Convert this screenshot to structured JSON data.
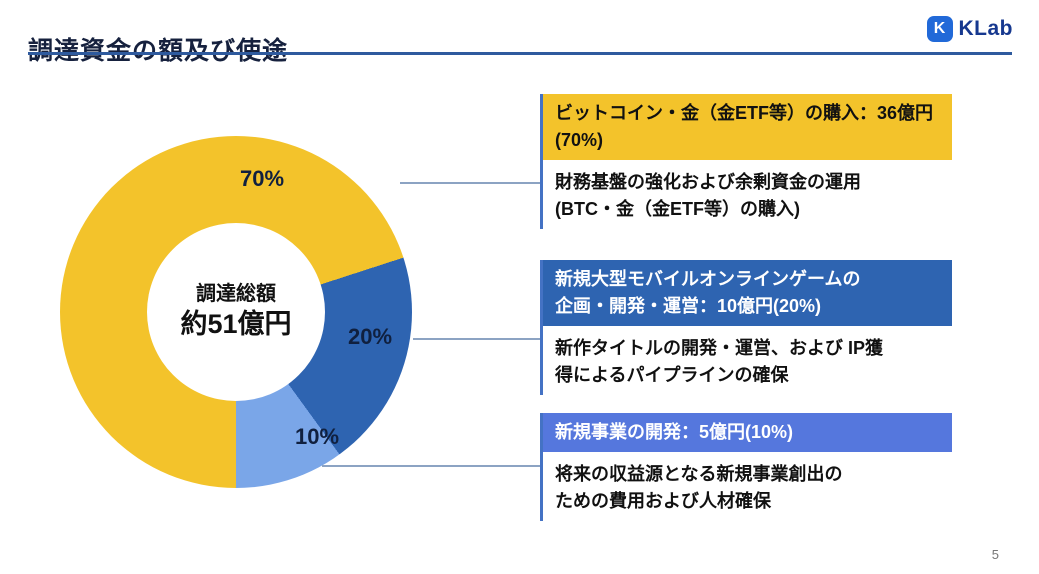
{
  "header": {
    "title": "調達資金の額及び使途",
    "logo": {
      "icon": "klab-mark-icon",
      "text": "KLab"
    }
  },
  "colors": {
    "title_text": "#16213E",
    "accent_line": "#2E5A9E",
    "connector": "#8CA3C3",
    "callout_rail": "#4472C4",
    "logo_blue": "#2169D8",
    "logo_text_blue": "#16388F"
  },
  "chart_data": {
    "type": "donut",
    "start_angle_deg": 180,
    "direction": "clockwise",
    "center_label": {
      "line1": "調達総額",
      "line2": "約51億円"
    },
    "segments": [
      {
        "name": "ビットコイン・金（金ETF等）の購入",
        "percent": 70,
        "amount": "36億円",
        "label": "70%",
        "color": "#F3C32B"
      },
      {
        "name": "新規大型モバイルオンラインゲームの企画・開発・運営",
        "percent": 20,
        "amount": "10億円",
        "label": "20%",
        "color": "#2E64B1"
      },
      {
        "name": "新規事業の開発",
        "percent": 10,
        "amount": "5億円",
        "label": "10%",
        "color": "#7AA6E8"
      }
    ]
  },
  "callouts": [
    {
      "header": "ビットコイン・金（金ETF等）の購入：36億円\n(70%)",
      "description": "財務基盤の強化および余剰資金の運用\n(BTC・金（金ETF等）の購入)",
      "colors": {
        "header_bg": "#F3C32B",
        "header_text": "#111111"
      }
    },
    {
      "header": "新規大型モバイルオンラインゲームの\n企画・開発・運営：10億円(20%)",
      "description": "新作タイトルの開発・運営、および IP獲\n得によるパイプラインの確保",
      "colors": {
        "header_bg": "#2E64B1",
        "header_text": "#FFFFFF"
      }
    },
    {
      "header": "新規事業の開発：5億円(10%)",
      "description": "将来の収益源となる新規事業創出の\nための費用および人材確保",
      "colors": {
        "header_bg": "#5577DD",
        "header_text": "#FFFFFF"
      }
    }
  ],
  "footer": {
    "page_number": "5"
  }
}
